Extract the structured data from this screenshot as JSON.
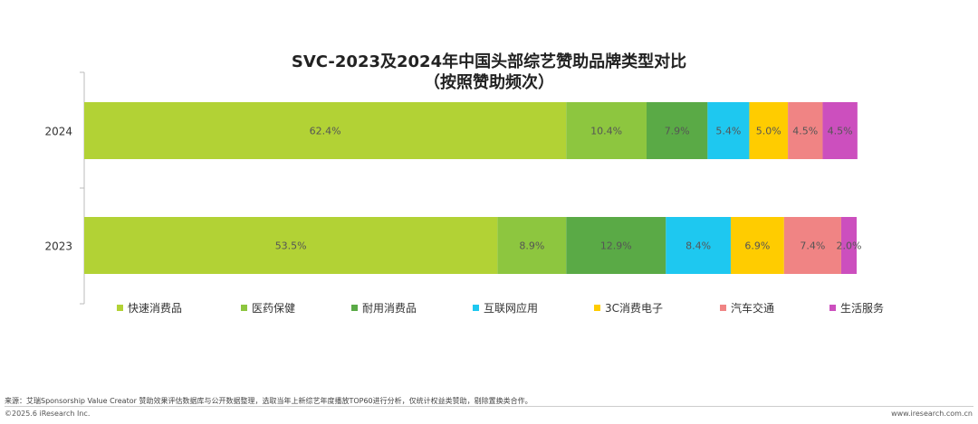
{
  "chart_data": {
    "type": "bar",
    "orientation": "horizontal",
    "stacked": true,
    "title": "SVC-2023及2024年中国头部综艺赞助品牌类型对比",
    "subtitle": "（按照赞助频次）",
    "categories": [
      "2024",
      "2023"
    ],
    "series": [
      {
        "name": "快速消费品",
        "color": "#b2d235",
        "values": [
          62.4,
          53.5
        ],
        "labels": [
          "62.4%",
          "53.5%"
        ]
      },
      {
        "name": "医药保健",
        "color": "#8dc63f",
        "values": [
          10.4,
          8.9
        ],
        "labels": [
          "10.4%",
          "8.9%"
        ]
      },
      {
        "name": "耐用消费品",
        "color": "#5aaa46",
        "values": [
          7.9,
          12.9
        ],
        "labels": [
          "7.9%",
          "12.9%"
        ]
      },
      {
        "name": "互联网应用",
        "color": "#1ec8f0",
        "values": [
          5.4,
          8.4
        ],
        "labels": [
          "5.4%",
          "8.4%"
        ]
      },
      {
        "name": "3C消费电子",
        "color": "#ffcc00",
        "values": [
          5.0,
          6.9
        ],
        "labels": [
          "5.0%",
          "6.9%"
        ]
      },
      {
        "name": "汽车交通",
        "color": "#f08484",
        "values": [
          4.5,
          7.4
        ],
        "labels": [
          "4.5%",
          "7.4%"
        ]
      },
      {
        "name": "生活服务",
        "color": "#cc4fbe",
        "values": [
          4.5,
          2.0
        ],
        "labels": [
          "4.5%",
          "2.0%"
        ]
      }
    ],
    "xlim": [
      0,
      100
    ],
    "grid": false,
    "legend_position": "bottom"
  },
  "footer": {
    "source": "来源：艾瑞Sponsorship Value Creator 赞助效果评估数据库与公开数据整理，选取当年上新综艺年度播放TOP60进行分析，仅统计权益类赞助，剔除置换类合作。",
    "copyright": "©2025.6 iResearch Inc.",
    "url": "www.iresearch.com.cn"
  }
}
